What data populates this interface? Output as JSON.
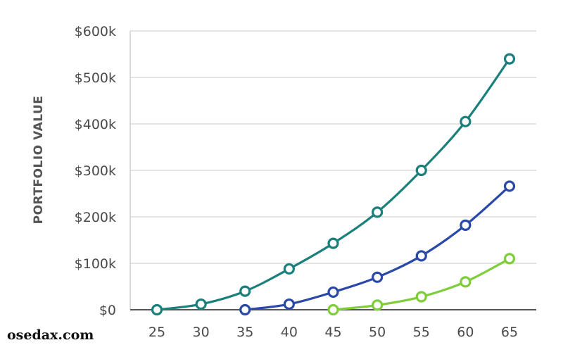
{
  "watermark": "osedax.com",
  "chart_data": {
    "type": "line",
    "ylabel": "PORTFOLIO VALUE",
    "xlabel": "",
    "x": [
      25,
      30,
      35,
      40,
      45,
      50,
      55,
      60,
      65
    ],
    "x_tick_labels": [
      "25",
      "30",
      "35",
      "40",
      "45",
      "50",
      "55",
      "60",
      "65"
    ],
    "ylim": [
      0,
      600000
    ],
    "y_ticks": [
      0,
      100000,
      200000,
      300000,
      400000,
      500000,
      600000
    ],
    "y_tick_labels": [
      "$0",
      "$100k",
      "$200k",
      "$300k",
      "$400k",
      "$500k",
      "$600k"
    ],
    "grid": true,
    "series": [
      {
        "color": "#1b7f7b",
        "x": [
          25,
          30,
          35,
          40,
          45,
          50,
          55,
          60,
          65
        ],
        "values": [
          0,
          12000,
          40000,
          88000,
          143000,
          210000,
          300000,
          405000,
          540000
        ]
      },
      {
        "color": "#2a48a5",
        "x": [
          35,
          40,
          45,
          50,
          55,
          60,
          65
        ],
        "values": [
          0,
          12000,
          38000,
          70000,
          116000,
          182000,
          266000
        ]
      },
      {
        "color": "#7fcd3a",
        "x": [
          45,
          50,
          55,
          60,
          65
        ],
        "values": [
          0,
          10000,
          28000,
          60000,
          110000
        ]
      }
    ]
  }
}
